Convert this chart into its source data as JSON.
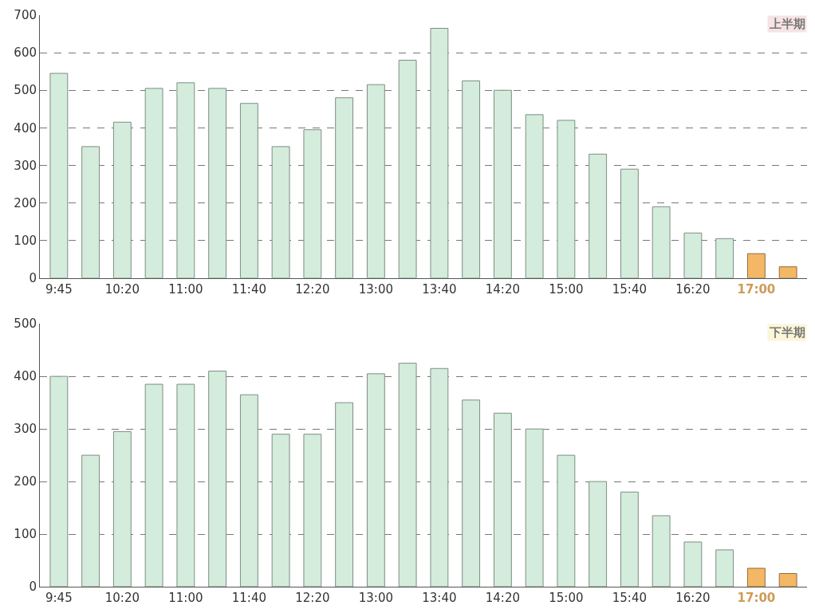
{
  "chart_data": [
    {
      "type": "bar",
      "title": "上半期",
      "categories": [
        "9:45",
        null,
        "10:20",
        null,
        "11:00",
        null,
        "11:40",
        null,
        "12:20",
        null,
        "13:00",
        null,
        "13:40",
        null,
        "14:20",
        null,
        "15:00",
        null,
        "15:40",
        null,
        "16:20",
        null,
        "17:00",
        null
      ],
      "values": [
        545,
        350,
        415,
        505,
        520,
        505,
        465,
        350,
        395,
        480,
        515,
        580,
        665,
        525,
        500,
        435,
        420,
        330,
        290,
        190,
        120,
        105,
        65,
        30
      ],
      "colors": [
        "#d3ecdb",
        "#d3ecdb",
        "#d3ecdb",
        "#d3ecdb",
        "#d3ecdb",
        "#d3ecdb",
        "#d3ecdb",
        "#d3ecdb",
        "#d3ecdb",
        "#d3ecdb",
        "#d3ecdb",
        "#d3ecdb",
        "#d3ecdb",
        "#d3ecdb",
        "#d3ecdb",
        "#d3ecdb",
        "#d3ecdb",
        "#d3ecdb",
        "#d3ecdb",
        "#d3ecdb",
        "#d3ecdb",
        "#d3ecdb",
        "#f3b765",
        "#f3b765"
      ],
      "ylim": [
        0,
        700
      ],
      "yticks": [
        0,
        100,
        200,
        300,
        400,
        500,
        600,
        700
      ],
      "grid": "y"
    },
    {
      "type": "bar",
      "title": "下半期",
      "categories": [
        "9:45",
        null,
        "10:20",
        null,
        "11:00",
        null,
        "11:40",
        null,
        "12:20",
        null,
        "13:00",
        null,
        "13:40",
        null,
        "14:20",
        null,
        "15:00",
        null,
        "15:40",
        null,
        "16:20",
        null,
        "17:00",
        null
      ],
      "values": [
        400,
        250,
        295,
        385,
        385,
        410,
        365,
        290,
        290,
        350,
        405,
        425,
        415,
        355,
        330,
        300,
        250,
        200,
        180,
        135,
        85,
        70,
        35,
        25
      ],
      "colors": [
        "#d3ecdb",
        "#d3ecdb",
        "#d3ecdb",
        "#d3ecdb",
        "#d3ecdb",
        "#d3ecdb",
        "#d3ecdb",
        "#d3ecdb",
        "#d3ecdb",
        "#d3ecdb",
        "#d3ecdb",
        "#d3ecdb",
        "#d3ecdb",
        "#d3ecdb",
        "#d3ecdb",
        "#d3ecdb",
        "#d3ecdb",
        "#d3ecdb",
        "#d3ecdb",
        "#d3ecdb",
        "#d3ecdb",
        "#d3ecdb",
        "#f3b765",
        "#f3b765"
      ],
      "ylim": [
        0,
        500
      ],
      "yticks": [
        0,
        100,
        200,
        300,
        400,
        500
      ],
      "grid": "y"
    }
  ]
}
